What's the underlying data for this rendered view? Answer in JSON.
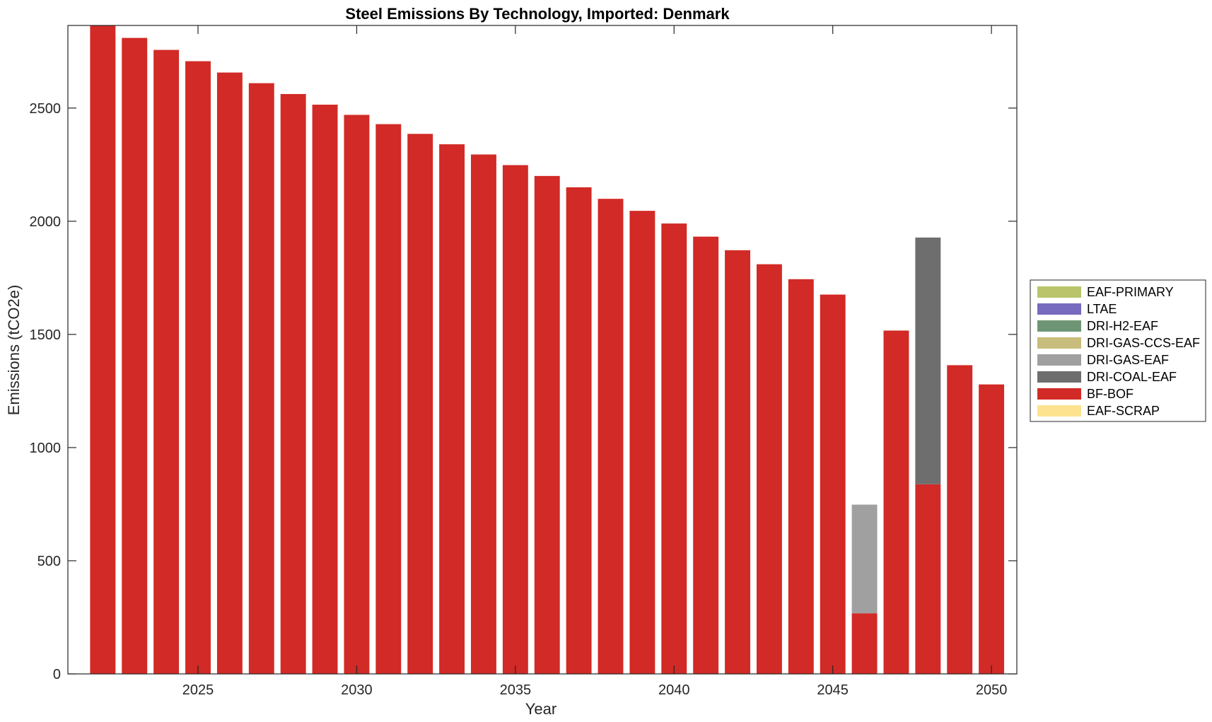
{
  "chart_data": {
    "type": "bar",
    "stacked": true,
    "title": "Steel Emissions By Technology, Imported: Denmark",
    "xlabel": "Year",
    "ylabel": "Emissions (tCO2e)",
    "x": [
      2022,
      2023,
      2024,
      2025,
      2026,
      2027,
      2028,
      2029,
      2030,
      2031,
      2032,
      2033,
      2034,
      2035,
      2036,
      2037,
      2038,
      2039,
      2040,
      2041,
      2042,
      2043,
      2044,
      2045,
      2046,
      2047,
      2048,
      2049,
      2050
    ],
    "xlim": [
      2020.9,
      2050.8
    ],
    "ylim": [
      0,
      2865
    ],
    "xticks": [
      "2025",
      "2030",
      "2035",
      "2040",
      "2045",
      "2050"
    ],
    "yticks": [
      "0",
      "500",
      "1000",
      "1500",
      "2000",
      "2500"
    ],
    "grid": false,
    "legend_position": "right",
    "series": [
      {
        "name": "EAF-SCRAP",
        "color": "#FDE38F",
        "values": [
          0,
          0,
          0,
          0,
          0,
          0,
          0,
          0,
          0,
          0,
          0,
          0,
          0,
          0,
          0,
          0,
          0,
          0,
          0,
          0,
          0,
          0,
          0,
          0,
          0,
          0,
          0,
          0,
          0
        ]
      },
      {
        "name": "BF-BOF",
        "color": "#D22A26",
        "values": [
          2865,
          2810,
          2757,
          2707,
          2657,
          2610,
          2562,
          2515,
          2470,
          2429,
          2386,
          2340,
          2295,
          2248,
          2200,
          2150,
          2099,
          2046,
          1990,
          1932,
          1872,
          1810,
          1744,
          1676,
          268,
          1517,
          838,
          1364,
          1279
        ]
      },
      {
        "name": "DRI-COAL-EAF",
        "color": "#6E6E6E",
        "values": [
          0,
          0,
          0,
          0,
          0,
          0,
          0,
          0,
          0,
          0,
          0,
          0,
          0,
          0,
          0,
          0,
          0,
          0,
          0,
          0,
          0,
          0,
          0,
          0,
          0,
          0,
          1090,
          0,
          0
        ]
      },
      {
        "name": "DRI-GAS-EAF",
        "color": "#A0A0A0",
        "values": [
          0,
          0,
          0,
          0,
          0,
          0,
          0,
          0,
          0,
          0,
          0,
          0,
          0,
          0,
          0,
          0,
          0,
          0,
          0,
          0,
          0,
          0,
          0,
          0,
          480,
          0,
          0,
          0,
          0
        ]
      },
      {
        "name": "DRI-GAS-CCS-EAF",
        "color": "#C8BD7C",
        "values": [
          0,
          0,
          0,
          0,
          0,
          0,
          0,
          0,
          0,
          0,
          0,
          0,
          0,
          0,
          0,
          0,
          0,
          0,
          0,
          0,
          0,
          0,
          0,
          0,
          0,
          0,
          0,
          0,
          0
        ]
      },
      {
        "name": "DRI-H2-EAF",
        "color": "#6E9676",
        "values": [
          0,
          0,
          0,
          0,
          0,
          0,
          0,
          0,
          0,
          0,
          0,
          0,
          0,
          0,
          0,
          0,
          0,
          0,
          0,
          0,
          0,
          0,
          0,
          0,
          0,
          0,
          0,
          0,
          0
        ]
      },
      {
        "name": "LTAE",
        "color": "#766BBE",
        "values": [
          0,
          0,
          0,
          0,
          0,
          0,
          0,
          0,
          0,
          0,
          0,
          0,
          0,
          0,
          0,
          0,
          0,
          0,
          0,
          0,
          0,
          0,
          0,
          0,
          0,
          0,
          0,
          0,
          0
        ]
      },
      {
        "name": "EAF-PRIMARY",
        "color": "#B9C46B",
        "values": [
          0,
          0,
          0,
          0,
          0,
          0,
          0,
          0,
          0,
          0,
          0,
          0,
          0,
          0,
          0,
          0,
          0,
          0,
          0,
          0,
          0,
          0,
          0,
          0,
          0,
          0,
          0,
          0,
          0
        ]
      }
    ],
    "legend": [
      {
        "name": "EAF-PRIMARY",
        "color": "#B9C46B"
      },
      {
        "name": "LTAE",
        "color": "#766BBE"
      },
      {
        "name": "DRI-H2-EAF",
        "color": "#6E9676"
      },
      {
        "name": "DRI-GAS-CCS-EAF",
        "color": "#C8BD7C"
      },
      {
        "name": "DRI-GAS-EAF",
        "color": "#A0A0A0"
      },
      {
        "name": "DRI-COAL-EAF",
        "color": "#6E6E6E"
      },
      {
        "name": "BF-BOF",
        "color": "#D22A26"
      },
      {
        "name": "EAF-SCRAP",
        "color": "#FDE38F"
      }
    ]
  }
}
